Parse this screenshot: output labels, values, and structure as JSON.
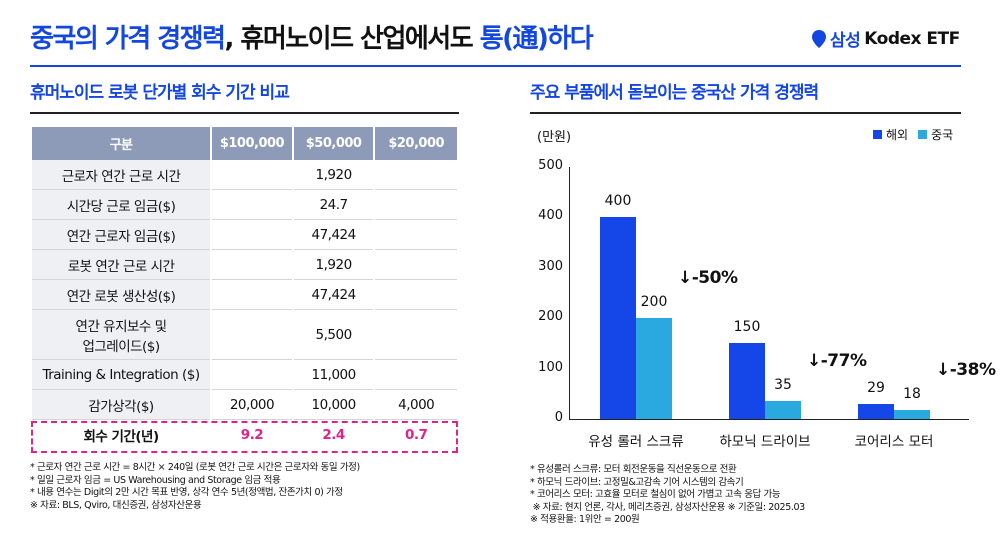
{
  "header": {
    "title_part1": "중국의 가격 경쟁력",
    "title_part2": ", 휴머노이드 산업에서도 ",
    "title_part3": "통(通)하다",
    "logo_brand": "삼성",
    "logo_product": "Kodex ETF"
  },
  "left": {
    "section_title": "휴머노이드 로봇 단가별 회수 기간 비교",
    "table": {
      "headers": [
        "구분",
        "$100,000",
        "$50,000",
        "$20,000"
      ],
      "rows": [
        [
          "근로자 연간 근로 시간",
          "",
          "1,920",
          ""
        ],
        [
          "시간당 근로 임금($)",
          "",
          "24.7",
          ""
        ],
        [
          "연간 근로자 임금($)",
          "",
          "47,424",
          ""
        ],
        [
          "로봇 연간 근로 시간",
          "",
          "1,920",
          ""
        ],
        [
          "연간 로봇 생산성($)",
          "",
          "47,424",
          ""
        ],
        [
          "연간 유지보수 및\n업그레이드($)",
          "",
          "5,500",
          ""
        ],
        [
          "Training & Integration ($)",
          "",
          "11,000",
          ""
        ],
        [
          "감가상각($)",
          "20,000",
          "10,000",
          "4,000"
        ]
      ],
      "payback": [
        "회수 기간(년)",
        "9.2",
        "2.4",
        "0.7"
      ]
    },
    "notes": [
      "* 근로자 연간 근로 시간 = 8시간 × 240일 (로봇 연간 근로 시간은 근로자와 동일 가정)",
      "* 일일 근로자 임금 = US Warehousing and Storage 임금 적용",
      "* 내용 연수는 Digit의 2만 시간 목표 반영, 상각 연수 5년(정액법, 잔존가치 0) 가정",
      "※ 자료: BLS, Qviro, 대신증권, 삼성자산운용"
    ]
  },
  "right": {
    "section_title": "주요 부품에서 돋보이는 중국산 가격 경쟁력",
    "notes": [
      "* 유성롤러 스크류: 모터 회전운동을 직선운동으로 전환",
      "* 하모닉 드라이브: 고정밀&고감속 기어 시스템의 감속기",
      "* 코어리스 모터: 고효율 모터로 철심이 없어 가볍고 고속 응답 가능",
      " ※ 자료: 현지 언론, 각사, 메리츠증권, 삼성자산운용 ※ 기준일: 2025.03",
      "※ 적용환율: 1위안 = 200원"
    ]
  },
  "chart_data": {
    "type": "bar",
    "ylabel": "(만원)",
    "ylim": [
      0,
      500
    ],
    "yticks": [
      "0",
      "100",
      "200",
      "300",
      "400",
      "500"
    ],
    "categories": [
      "유성 롤러 스크류",
      "하모닉 드라이브",
      "코어리스 모터"
    ],
    "series": [
      {
        "name": "해외",
        "color": "#1446e8",
        "values": [
          400,
          150,
          29
        ]
      },
      {
        "name": "중국",
        "color": "#29a9e0",
        "values": [
          200,
          35,
          18
        ]
      }
    ],
    "annotations": [
      "↓-50%",
      "↓-77%",
      "↓-38%"
    ],
    "legend": "top-right",
    "grid": false
  }
}
